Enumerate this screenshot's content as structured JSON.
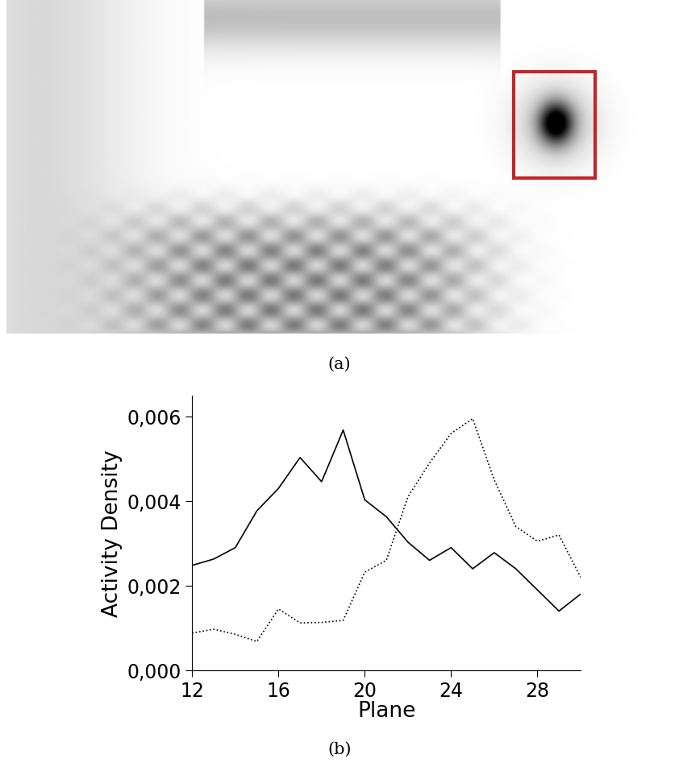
{
  "image": {
    "caption": "(a)"
  },
  "chart_data": {
    "type": "line",
    "caption": "(b)",
    "x_label": "Plane",
    "y_label": "Activity Density",
    "x": [
      12,
      13,
      14,
      15,
      16,
      17,
      18,
      19,
      20,
      21,
      22,
      23,
      24,
      25,
      26,
      27,
      28,
      29,
      30
    ],
    "series": [
      {
        "color": "#000000",
        "line_style": "solid",
        "values": [
          0.00248,
          0.00263,
          0.0029,
          0.00377,
          0.0043,
          0.00503,
          0.00446,
          0.00568,
          0.00403,
          0.00363,
          0.00303,
          0.0026,
          0.0029,
          0.0024,
          0.00278,
          0.0024,
          0.0019,
          0.0014,
          0.0018
        ]
      },
      {
        "color": "#000000",
        "line_style": "dotted",
        "values": [
          0.00088,
          0.00097,
          0.00085,
          0.00068,
          0.00145,
          0.00112,
          0.00113,
          0.00118,
          0.00232,
          0.0026,
          0.0041,
          0.0049,
          0.0056,
          0.00595,
          0.0045,
          0.0034,
          0.00305,
          0.0032,
          0.0022
        ]
      }
    ],
    "xlim": [
      12,
      30
    ],
    "xticks": [
      12,
      16,
      20,
      24,
      28
    ],
    "ylim": [
      0,
      0.0065
    ],
    "yticks": [
      {
        "value": 0,
        "label": "0,000"
      },
      {
        "value": 0.002,
        "label": "0,002"
      },
      {
        "value": 0.004,
        "label": "0,004"
      },
      {
        "value": 0.006,
        "label": "0,006"
      }
    ],
    "grid": false
  }
}
